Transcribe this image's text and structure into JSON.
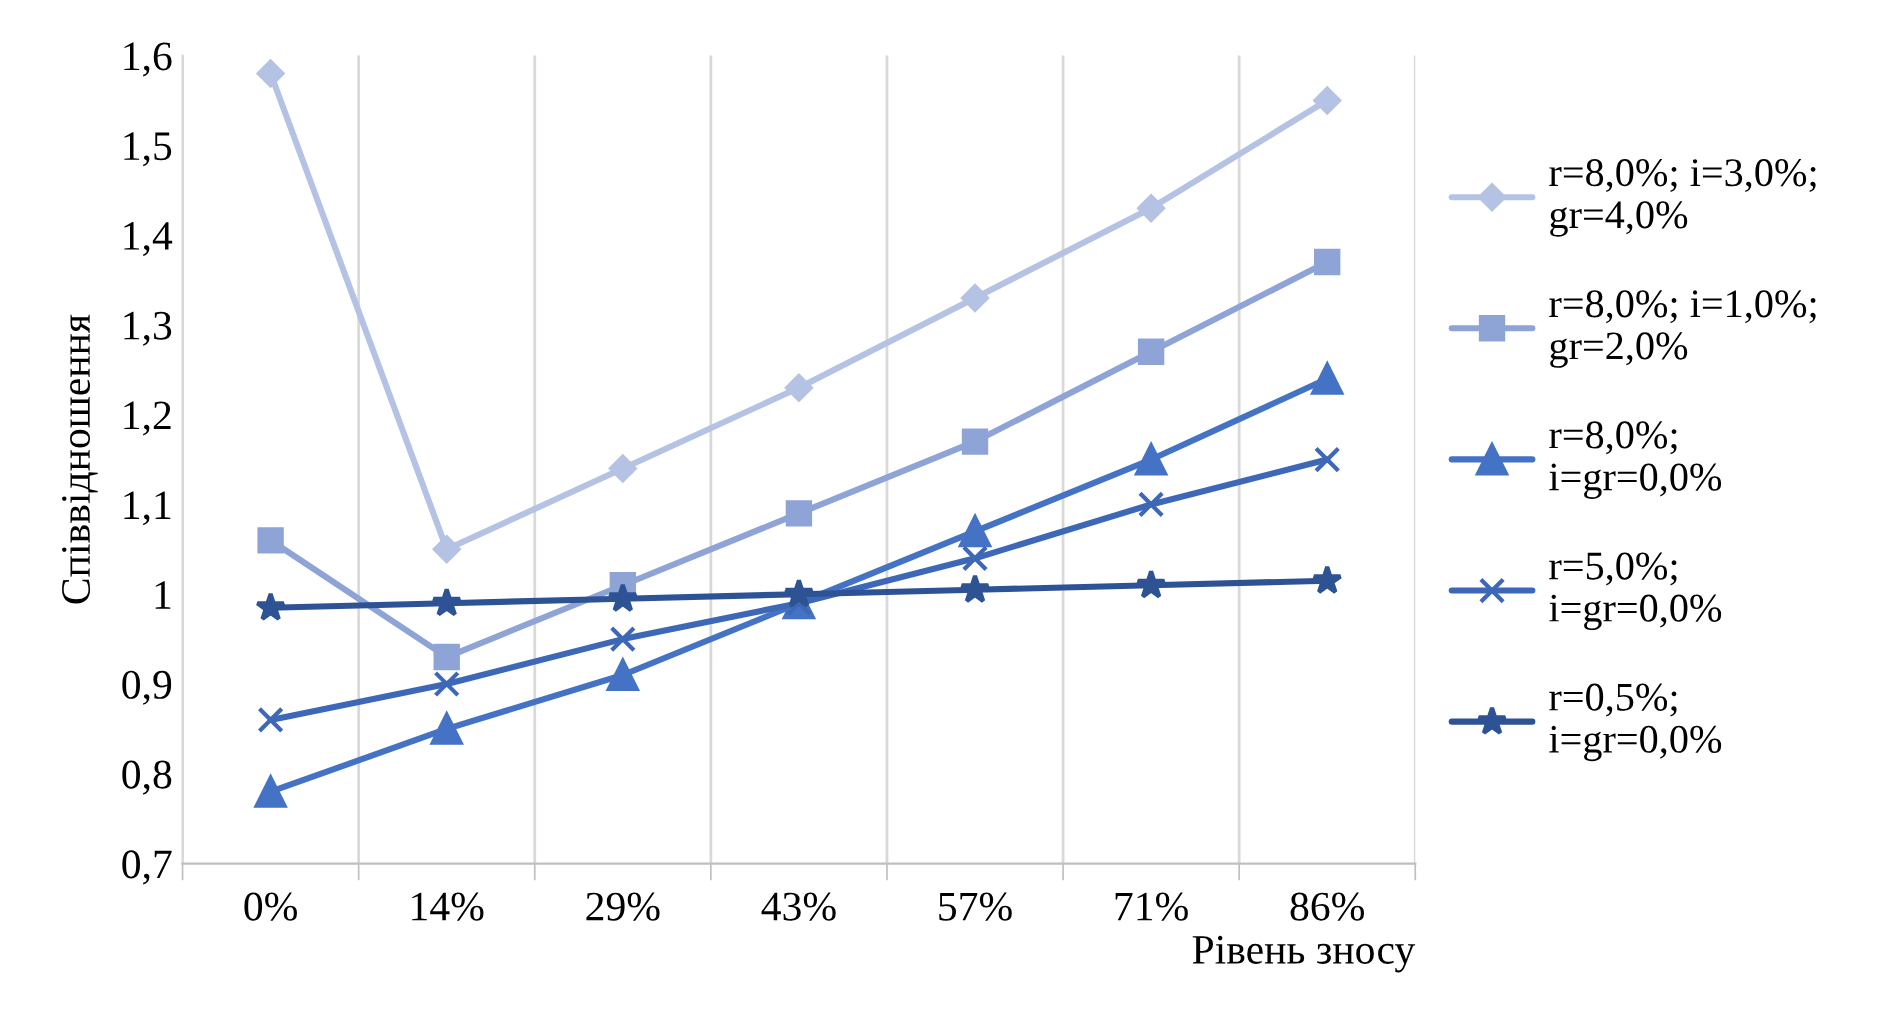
{
  "chart_data": {
    "type": "line",
    "xlabel": "Рівень зносу",
    "ylabel": "Співвідношення",
    "categories": [
      "0%",
      "14%",
      "29%",
      "43%",
      "57%",
      "71%",
      "86%"
    ],
    "series": [
      {
        "name": "r=8,0%; i=3,0%;\ngr=4,0%",
        "color": "#b4c2e4",
        "marker": "diamond",
        "values": [
          1.58,
          1.05,
          1.14,
          1.23,
          1.33,
          1.43,
          1.55
        ]
      },
      {
        "name": "r=8,0%; i=1,0%;\ngr=2,0%",
        "color": "#8ea3d6",
        "marker": "square",
        "values": [
          1.06,
          0.93,
          1.01,
          1.09,
          1.17,
          1.27,
          1.37
        ]
      },
      {
        "name": "r=8,0%;\ni=gr=0,0%",
        "color": "#4472c4",
        "marker": "triangle",
        "values": [
          0.78,
          0.85,
          0.91,
          0.99,
          1.07,
          1.15,
          1.24
        ]
      },
      {
        "name": "r=5,0%;\ni=gr=0,0%",
        "color": "#3d68b8",
        "marker": "cross",
        "values": [
          0.86,
          0.9,
          0.95,
          0.99,
          1.04,
          1.1,
          1.15
        ]
      },
      {
        "name": "r=0,5%;\ni=gr=0,0%",
        "color": "#2e5395",
        "marker": "star",
        "values": [
          0.985,
          0.99,
          0.995,
          1.0,
          1.005,
          1.01,
          1.015
        ]
      }
    ],
    "ylim": [
      0.7,
      1.6
    ],
    "yticks": [
      {
        "value": 0.7,
        "label": "0,7"
      },
      {
        "value": 0.8,
        "label": "0,8"
      },
      {
        "value": 0.9,
        "label": "0,9"
      },
      1,
      {
        "value": 1.1,
        "label": "1,1"
      },
      {
        "value": 1.2,
        "label": "1,2"
      },
      {
        "value": 1.3,
        "label": "1,3"
      },
      {
        "value": 1.4,
        "label": "1,4"
      },
      {
        "value": 1.5,
        "label": "1,5"
      },
      {
        "value": 1.6,
        "label": "1,6"
      }
    ],
    "grid": "x",
    "legend": "right",
    "line_style": "solid"
  }
}
